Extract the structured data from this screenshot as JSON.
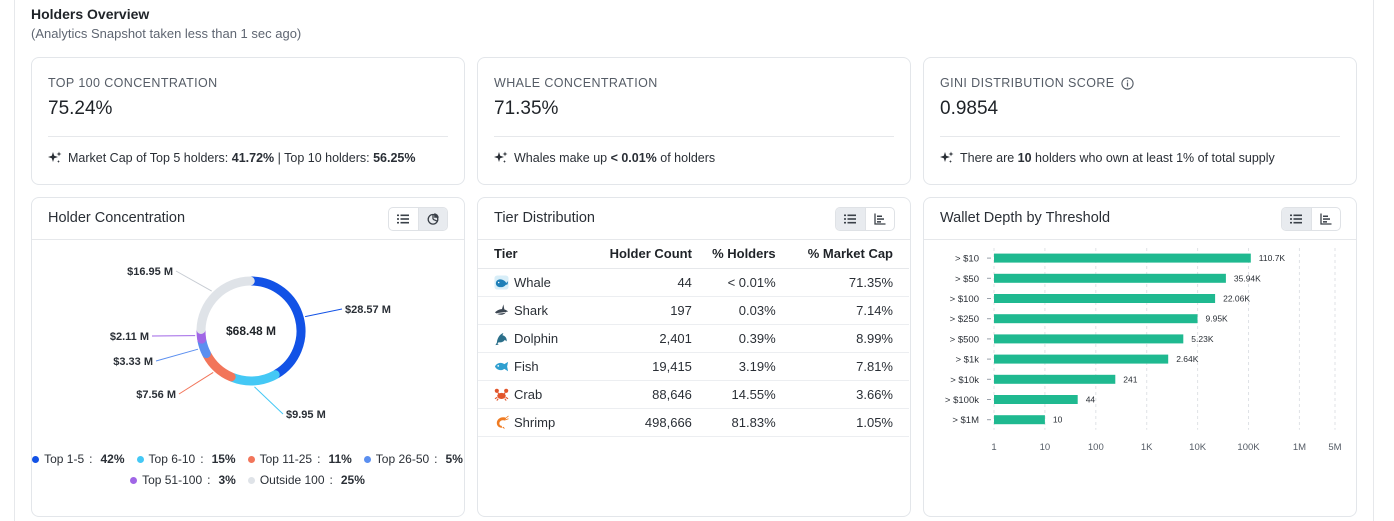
{
  "header": {
    "title": "Holders Overview",
    "subtitle": "(Analytics Snapshot taken less than 1 sec ago)"
  },
  "stats": {
    "top100": {
      "label": "TOP 100 CONCENTRATION",
      "value": "75.24%",
      "note_prefix": "Market Cap of Top 5 holders: ",
      "note_top5": "41.72%",
      "note_mid": " | Top 10 holders: ",
      "note_top10": "56.25%"
    },
    "whale": {
      "label": "WHALE CONCENTRATION",
      "value": "71.35%",
      "note_prefix": "Whales make up ",
      "note_value": "< 0.01%",
      "note_suffix": " of holders"
    },
    "gini": {
      "label": "GINI DISTRIBUTION SCORE",
      "value": "0.9854",
      "note_prefix": "There are ",
      "note_value": "10",
      "note_suffix": " holders who own at least 1% of total supply"
    }
  },
  "holder_concentration": {
    "title": "Holder Concentration",
    "center_label": "$68.48 M",
    "slices": [
      {
        "name": "Top 1-5",
        "pct": "42%",
        "value_label": "$28.57 M",
        "value": 28.57,
        "color": "#1252e6"
      },
      {
        "name": "Top 6-10",
        "pct": "15%",
        "value_label": "$9.95 M",
        "value": 9.95,
        "color": "#44c8f5"
      },
      {
        "name": "Top 11-25",
        "pct": "11%",
        "value_label": "$7.56 M",
        "value": 7.56,
        "color": "#f2755a"
      },
      {
        "name": "Top 26-50",
        "pct": "5%",
        "value_label": "$3.33 M",
        "value": 3.33,
        "color": "#5b8ff0"
      },
      {
        "name": "Top 51-100",
        "pct": "3%",
        "value_label": "$2.11 M",
        "value": 2.11,
        "color": "#a066e6"
      },
      {
        "name": "Outside 100",
        "pct": "25%",
        "value_label": "$16.95 M",
        "value": 16.95,
        "color": "#dfe3e8"
      }
    ]
  },
  "tier_distribution": {
    "title": "Tier Distribution",
    "columns": [
      "Tier",
      "Holder Count",
      "% Holders",
      "% Market Cap"
    ],
    "rows": [
      {
        "tier": "Whale",
        "icon": "whale-icon",
        "count": "44",
        "holders": "< 0.01%",
        "mcap": "71.35%"
      },
      {
        "tier": "Shark",
        "icon": "shark-icon",
        "count": "197",
        "holders": "0.03%",
        "mcap": "7.14%"
      },
      {
        "tier": "Dolphin",
        "icon": "dolphin-icon",
        "count": "2,401",
        "holders": "0.39%",
        "mcap": "8.99%"
      },
      {
        "tier": "Fish",
        "icon": "fish-icon",
        "count": "19,415",
        "holders": "3.19%",
        "mcap": "7.81%"
      },
      {
        "tier": "Crab",
        "icon": "crab-icon",
        "count": "88,646",
        "holders": "14.55%",
        "mcap": "3.66%"
      },
      {
        "tier": "Shrimp",
        "icon": "shrimp-icon",
        "count": "498,666",
        "holders": "81.83%",
        "mcap": "1.05%"
      }
    ]
  },
  "wallet_depth": {
    "title": "Wallet Depth by Threshold"
  },
  "chart_data": [
    {
      "type": "pie",
      "categories": [
        "Top 1-5",
        "Top 6-10",
        "Top 11-25",
        "Top 26-50",
        "Top 51-100",
        "Outside 100"
      ],
      "values": [
        28.57,
        9.95,
        7.56,
        3.33,
        2.11,
        16.95
      ],
      "title": "Holder Concentration",
      "center_label": "$68.48 M",
      "legend": "bottom"
    },
    {
      "type": "bar",
      "orientation": "horizontal",
      "title": "Wallet Depth by Threshold",
      "categories": [
        "> $10",
        "> $50",
        "> $100",
        "> $250",
        "> $500",
        "> $1k",
        "> $10k",
        "> $100k",
        "> $1M"
      ],
      "values": [
        110700,
        35940,
        22060,
        9950,
        5230,
        2640,
        241,
        44,
        10
      ],
      "data_labels": [
        "110.7K",
        "35.94K",
        "22.06K",
        "9.95K",
        "5.23K",
        "2.64K",
        "241",
        "44",
        "10"
      ],
      "x_scale": "log",
      "xlim": [
        1,
        5000000
      ],
      "x_ticks": [
        1,
        10,
        100,
        1000,
        10000,
        100000,
        1000000,
        5000000
      ],
      "x_tick_labels": [
        "1",
        "10",
        "100",
        "1K",
        "10K",
        "100K",
        "1M",
        "5M"
      ],
      "grid": true,
      "color": "#1fb990"
    }
  ]
}
